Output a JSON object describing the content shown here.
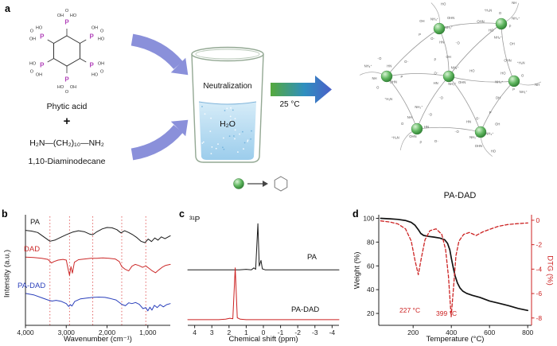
{
  "panels": {
    "a": "a",
    "b": "b",
    "c": "c",
    "d": "d"
  },
  "scheme": {
    "phytic_acid": {
      "name": "Phytic acid",
      "p": "P",
      "ho": "HO",
      "oh": "OH",
      "o": "O"
    },
    "plus": "+",
    "diamine": {
      "formula": "H₂N—(CH₂)₁₀—NH₂",
      "name": "1,10-Diaminodecane"
    },
    "beaker": {
      "step": "Neutralization",
      "solvent": "H₂O"
    },
    "condition": "25 °C",
    "product": "PA-DAD",
    "network_labels": [
      "NH₃⁺",
      "⁻O",
      "HN",
      "O⁻",
      "P",
      "OH",
      "NH₃⁺",
      "HO",
      "OHN",
      "⁺H₃N",
      "O",
      "NH"
    ],
    "colors": {
      "arrow": "#8a90da",
      "sphere_dark": "#2f7d32",
      "water": "#9ccdec",
      "beaker_outline": "#93a893"
    }
  },
  "chart_data": [
    {
      "id": "ftir",
      "type": "line",
      "xlabel": "Wavenumber (cm⁻¹)",
      "ylabel": "Intensity (a.u.)",
      "xlim": [
        4000,
        450
      ],
      "ylim": [
        0,
        3.05
      ],
      "xticks": [
        {
          "v": 4000,
          "label": "4,000"
        },
        {
          "v": 3000,
          "label": "3,000"
        },
        {
          "v": 2000,
          "label": "2,000"
        },
        {
          "v": 1000,
          "label": "1,000"
        }
      ],
      "guide_lines": [
        3400,
        2920,
        2350,
        1640,
        1050
      ],
      "guide_color": "#e05555",
      "series": [
        {
          "name": "PA",
          "color": "#1a1a1a",
          "width": 1.0,
          "points": [
            [
              4000,
              2.62
            ],
            [
              3850,
              2.6
            ],
            [
              3700,
              2.56
            ],
            [
              3550,
              2.44
            ],
            [
              3400,
              2.32
            ],
            [
              3280,
              2.35
            ],
            [
              3150,
              2.42
            ],
            [
              3000,
              2.5
            ],
            [
              2850,
              2.57
            ],
            [
              2700,
              2.61
            ],
            [
              2550,
              2.58
            ],
            [
              2430,
              2.52
            ],
            [
              2350,
              2.5
            ],
            [
              2250,
              2.58
            ],
            [
              2120,
              2.66
            ],
            [
              2000,
              2.7
            ],
            [
              1880,
              2.69
            ],
            [
              1760,
              2.64
            ],
            [
              1660,
              2.55
            ],
            [
              1570,
              2.61
            ],
            [
              1470,
              2.56
            ],
            [
              1370,
              2.5
            ],
            [
              1270,
              2.42
            ],
            [
              1170,
              2.32
            ],
            [
              1070,
              2.28
            ],
            [
              990,
              2.38
            ],
            [
              910,
              2.31
            ],
            [
              830,
              2.41
            ],
            [
              750,
              2.35
            ],
            [
              670,
              2.44
            ],
            [
              580,
              2.39
            ],
            [
              450,
              2.47
            ]
          ]
        },
        {
          "name": "DAD",
          "color": "#cc2a2a",
          "width": 1.0,
          "points": [
            [
              4000,
              1.88
            ],
            [
              3800,
              1.87
            ],
            [
              3600,
              1.85
            ],
            [
              3450,
              1.82
            ],
            [
              3360,
              1.72
            ],
            [
              3300,
              1.76
            ],
            [
              3200,
              1.8
            ],
            [
              3080,
              1.82
            ],
            [
              3000,
              1.8
            ],
            [
              2955,
              1.55
            ],
            [
              2920,
              1.38
            ],
            [
              2885,
              1.62
            ],
            [
              2850,
              1.44
            ],
            [
              2800,
              1.74
            ],
            [
              2700,
              1.81
            ],
            [
              2550,
              1.83
            ],
            [
              2400,
              1.85
            ],
            [
              2250,
              1.85
            ],
            [
              2100,
              1.86
            ],
            [
              1950,
              1.85
            ],
            [
              1800,
              1.83
            ],
            [
              1700,
              1.76
            ],
            [
              1640,
              1.62
            ],
            [
              1560,
              1.55
            ],
            [
              1470,
              1.5
            ],
            [
              1390,
              1.63
            ],
            [
              1310,
              1.68
            ],
            [
              1220,
              1.65
            ],
            [
              1130,
              1.6
            ],
            [
              1050,
              1.64
            ],
            [
              970,
              1.57
            ],
            [
              890,
              1.5
            ],
            [
              810,
              1.45
            ],
            [
              730,
              1.53
            ],
            [
              650,
              1.6
            ],
            [
              570,
              1.65
            ],
            [
              450,
              1.68
            ]
          ]
        },
        {
          "name": "PA-DAD",
          "color": "#2a3fbb",
          "width": 1.0,
          "points": [
            [
              4000,
              0.88
            ],
            [
              3800,
              0.84
            ],
            [
              3600,
              0.76
            ],
            [
              3450,
              0.7
            ],
            [
              3350,
              0.67
            ],
            [
              3250,
              0.69
            ],
            [
              3120,
              0.66
            ],
            [
              3000,
              0.6
            ],
            [
              2940,
              0.52
            ],
            [
              2900,
              0.57
            ],
            [
              2860,
              0.53
            ],
            [
              2790,
              0.66
            ],
            [
              2650,
              0.73
            ],
            [
              2500,
              0.75
            ],
            [
              2350,
              0.77
            ],
            [
              2200,
              0.78
            ],
            [
              2050,
              0.77
            ],
            [
              1920,
              0.74
            ],
            [
              1780,
              0.7
            ],
            [
              1640,
              0.58
            ],
            [
              1550,
              0.54
            ],
            [
              1470,
              0.62
            ],
            [
              1390,
              0.6
            ],
            [
              1300,
              0.63
            ],
            [
              1210,
              0.58
            ],
            [
              1120,
              0.46
            ],
            [
              1050,
              0.49
            ],
            [
              1000,
              0.4
            ],
            [
              950,
              0.5
            ],
            [
              900,
              0.42
            ],
            [
              840,
              0.55
            ],
            [
              770,
              0.49
            ],
            [
              700,
              0.57
            ],
            [
              620,
              0.51
            ],
            [
              540,
              0.57
            ],
            [
              450,
              0.6
            ]
          ]
        }
      ]
    },
    {
      "id": "nmr",
      "type": "line",
      "nucleus": "³¹P",
      "xlabel": "Chemical shift (ppm)",
      "xlim": [
        4.4,
        -4.4
      ],
      "ylim": [
        0,
        2.35
      ],
      "xticks": [
        {
          "v": 4,
          "label": "4"
        },
        {
          "v": 3,
          "label": "3"
        },
        {
          "v": 2,
          "label": "2"
        },
        {
          "v": 1,
          "label": "1"
        },
        {
          "v": 0,
          "label": "0"
        },
        {
          "v": -1,
          "label": "-1"
        },
        {
          "v": -2,
          "label": "-2"
        },
        {
          "v": -3,
          "label": "-3"
        },
        {
          "v": -4,
          "label": "-4"
        }
      ],
      "series": [
        {
          "name": "PA",
          "color": "#1a1a1a",
          "width": 1.0,
          "points": [
            [
              4.4,
              1.18
            ],
            [
              1.4,
              1.18
            ],
            [
              1.0,
              1.19
            ],
            [
              0.7,
              1.18
            ],
            [
              0.55,
              1.22
            ],
            [
              0.45,
              1.19
            ],
            [
              0.32,
              2.16
            ],
            [
              0.24,
              1.26
            ],
            [
              0.14,
              1.38
            ],
            [
              0.06,
              1.2
            ],
            [
              -0.1,
              1.18
            ],
            [
              -0.5,
              1.18
            ],
            [
              -4.4,
              1.18
            ]
          ]
        },
        {
          "name": "PA-DAD",
          "color": "#cc2222",
          "width": 1.0,
          "points": [
            [
              4.4,
              0.12
            ],
            [
              2.6,
              0.12
            ],
            [
              2.2,
              0.13
            ],
            [
              1.95,
              0.15
            ],
            [
              1.78,
              0.14
            ],
            [
              1.64,
              1.22
            ],
            [
              1.52,
              0.16
            ],
            [
              1.35,
              0.13
            ],
            [
              1.0,
              0.12
            ],
            [
              0,
              0.12
            ],
            [
              -4.4,
              0.12
            ]
          ]
        }
      ]
    },
    {
      "id": "tga",
      "type": "line",
      "xlabel": "Temperature (°C)",
      "ylabel_left": "Weight (%)",
      "ylabel_right": "DTG (%)",
      "xlim": [
        20,
        820
      ],
      "ylim_left": [
        10,
        103
      ],
      "ylim_right": [
        -8.6,
        0.45
      ],
      "xticks": [
        {
          "v": 200,
          "label": "200"
        },
        {
          "v": 400,
          "label": "400"
        },
        {
          "v": 600,
          "label": "600"
        },
        {
          "v": 800,
          "label": "800"
        }
      ],
      "yticks_left": [
        20,
        40,
        60,
        80,
        100
      ],
      "yticks_right": [
        0,
        -2,
        -4,
        -6,
        -8
      ],
      "right_color": "#cc2222",
      "annotations": [
        {
          "text": "227 °C",
          "x": 227
        },
        {
          "text": "399 °C",
          "x": 399
        }
      ],
      "series": [
        {
          "name": "Weight",
          "axis": "left",
          "color": "#111111",
          "width": 1.7,
          "points": [
            [
              30,
              100
            ],
            [
              80,
              99.6
            ],
            [
              120,
              99.1
            ],
            [
              160,
              98.2
            ],
            [
              190,
              96.6
            ],
            [
              210,
              94.2
            ],
            [
              227,
              90.5
            ],
            [
              240,
              87.3
            ],
            [
              255,
              85.6
            ],
            [
              280,
              84.8
            ],
            [
              310,
              84.2
            ],
            [
              340,
              83.4
            ],
            [
              365,
              82.0
            ],
            [
              380,
              79.0
            ],
            [
              392,
              73.5
            ],
            [
              400,
              66.5
            ],
            [
              410,
              58.5
            ],
            [
              420,
              51.5
            ],
            [
              432,
              45.5
            ],
            [
              445,
              41.5
            ],
            [
              460,
              38.8
            ],
            [
              480,
              36.9
            ],
            [
              510,
              35.2
            ],
            [
              550,
              33.5
            ],
            [
              600,
              30.5
            ],
            [
              650,
              28.5
            ],
            [
              700,
              26.5
            ],
            [
              750,
              24.2
            ],
            [
              800,
              22.5
            ]
          ]
        },
        {
          "name": "DTG",
          "axis": "right",
          "color": "#cc2222",
          "width": 1.3,
          "dash": "4,2.5",
          "points": [
            [
              30,
              -0.05
            ],
            [
              80,
              -0.15
            ],
            [
              120,
              -0.3
            ],
            [
              160,
              -0.7
            ],
            [
              190,
              -1.7
            ],
            [
              210,
              -3.3
            ],
            [
              227,
              -4.45
            ],
            [
              243,
              -3.1
            ],
            [
              262,
              -1.6
            ],
            [
              288,
              -0.85
            ],
            [
              320,
              -0.7
            ],
            [
              350,
              -1.15
            ],
            [
              370,
              -2.4
            ],
            [
              385,
              -4.6
            ],
            [
              399,
              -7.9
            ],
            [
              412,
              -5.4
            ],
            [
              424,
              -2.9
            ],
            [
              440,
              -1.7
            ],
            [
              465,
              -1.15
            ],
            [
              495,
              -1.0
            ],
            [
              530,
              -1.25
            ],
            [
              565,
              -0.95
            ],
            [
              600,
              -0.75
            ],
            [
              645,
              -0.5
            ],
            [
              695,
              -0.35
            ],
            [
              745,
              -0.28
            ],
            [
              800,
              -0.22
            ]
          ]
        }
      ]
    }
  ]
}
